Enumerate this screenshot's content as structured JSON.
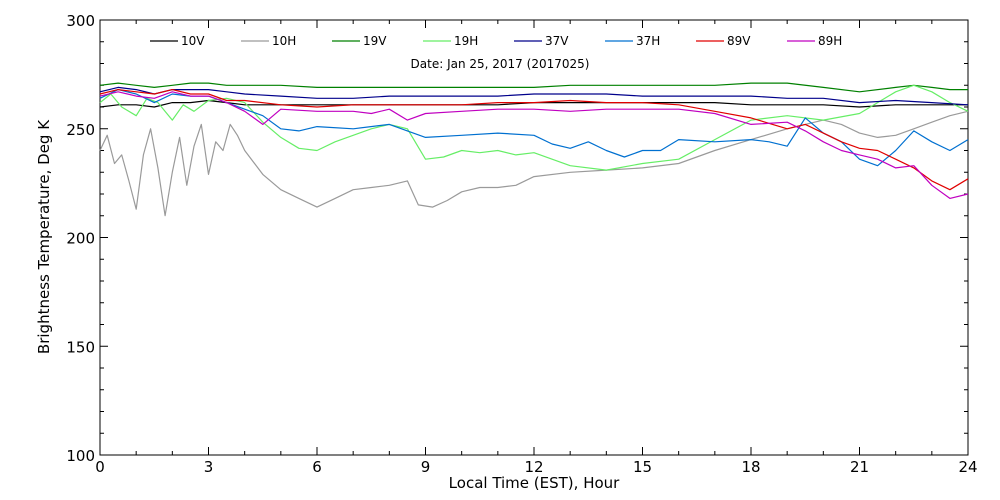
{
  "chart_data": {
    "type": "line",
    "title": "",
    "annotation": "Date: Jan 25, 2017 (2017025)",
    "xlabel": "Local Time (EST), Hour",
    "ylabel": "Brightness Temperature, Deg K",
    "xlim": [
      0,
      24
    ],
    "ylim": [
      100,
      300
    ],
    "xticks": [
      0,
      3,
      6,
      9,
      12,
      15,
      18,
      21,
      24
    ],
    "yticks": [
      100,
      150,
      200,
      250,
      300
    ],
    "grid": false,
    "legend_position": "top",
    "series": [
      {
        "name": "10V",
        "color": "#000000",
        "x": [
          0,
          0.5,
          1,
          1.5,
          2,
          2.5,
          3,
          3.5,
          4,
          5,
          6,
          7,
          8,
          9,
          10,
          11,
          12,
          13,
          14,
          15,
          16,
          17,
          18,
          19,
          20,
          21,
          22,
          23,
          24
        ],
        "y": [
          260,
          261,
          261,
          260,
          262,
          262,
          263,
          262,
          261,
          261,
          261,
          261,
          261,
          261,
          261,
          261,
          262,
          262,
          262,
          262,
          262,
          262,
          261,
          261,
          261,
          260,
          261,
          261,
          261
        ]
      },
      {
        "name": "10H",
        "color": "#9a9a9a",
        "x": [
          0,
          0.2,
          0.4,
          0.6,
          0.8,
          1.0,
          1.2,
          1.4,
          1.6,
          1.8,
          2.0,
          2.2,
          2.4,
          2.6,
          2.8,
          3.0,
          3.2,
          3.4,
          3.6,
          3.8,
          4,
          4.5,
          5,
          5.5,
          6,
          6.5,
          7,
          7.5,
          8,
          8.5,
          8.8,
          9.2,
          9.6,
          10,
          10.5,
          11,
          11.5,
          12,
          13,
          14,
          15,
          16,
          17,
          18,
          19,
          20,
          20.5,
          21,
          21.5,
          22,
          22.5,
          23,
          23.5,
          24
        ],
        "y": [
          240,
          247,
          234,
          238,
          226,
          213,
          238,
          250,
          232,
          210,
          230,
          246,
          224,
          242,
          252,
          229,
          244,
          240,
          252,
          247,
          240,
          229,
          222,
          218,
          214,
          218,
          222,
          223,
          224,
          226,
          215,
          214,
          217,
          221,
          223,
          223,
          224,
          228,
          230,
          231,
          232,
          234,
          240,
          245,
          250,
          254,
          252,
          248,
          246,
          247,
          250,
          253,
          256,
          258
        ]
      },
      {
        "name": "19V",
        "color": "#008000",
        "x": [
          0,
          0.5,
          1,
          1.5,
          2,
          2.5,
          3,
          3.5,
          4,
          5,
          6,
          7,
          8,
          9,
          10,
          11,
          12,
          13,
          14,
          15,
          16,
          17,
          18,
          19,
          20,
          21,
          22,
          22.5,
          23,
          23.5,
          24
        ],
        "y": [
          270,
          271,
          270,
          269,
          270,
          271,
          271,
          270,
          270,
          270,
          269,
          269,
          269,
          269,
          269,
          269,
          269,
          270,
          270,
          270,
          270,
          270,
          271,
          271,
          269,
          267,
          269,
          270,
          269,
          268,
          268
        ]
      },
      {
        "name": "19H",
        "color": "#66ee66",
        "x": [
          0,
          0.3,
          0.6,
          1,
          1.3,
          1.6,
          2,
          2.3,
          2.6,
          3,
          3.5,
          4,
          4.5,
          5,
          5.5,
          6,
          6.5,
          7,
          7.5,
          8,
          8.5,
          9,
          9.5,
          10,
          10.5,
          11,
          11.5,
          12,
          12.5,
          13,
          14,
          15,
          16,
          17,
          18,
          19,
          20,
          21,
          22,
          22.5,
          23,
          23.5,
          24
        ],
        "y": [
          262,
          266,
          260,
          256,
          264,
          262,
          254,
          261,
          258,
          263,
          264,
          262,
          253,
          246,
          241,
          240,
          244,
          247,
          250,
          252,
          250,
          236,
          237,
          240,
          239,
          240,
          238,
          239,
          236,
          233,
          231,
          234,
          236,
          245,
          254,
          256,
          254,
          257,
          267,
          270,
          267,
          262,
          258
        ]
      },
      {
        "name": "37V",
        "color": "#00008b",
        "x": [
          0,
          0.5,
          1,
          1.5,
          2,
          2.5,
          3,
          3.5,
          4,
          5,
          6,
          7,
          8,
          9,
          10,
          11,
          12,
          13,
          14,
          15,
          16,
          17,
          18,
          19,
          20,
          21,
          22,
          23,
          24
        ],
        "y": [
          267,
          269,
          268,
          266,
          268,
          268,
          268,
          267,
          266,
          265,
          264,
          264,
          265,
          265,
          265,
          265,
          266,
          266,
          266,
          265,
          265,
          265,
          265,
          264,
          264,
          262,
          263,
          262,
          261
        ]
      },
      {
        "name": "37H",
        "color": "#0070d0",
        "x": [
          0,
          0.5,
          1,
          1.5,
          2,
          2.5,
          3,
          3.5,
          4,
          4.5,
          5,
          5.5,
          6,
          7,
          8,
          8.5,
          9,
          10,
          11,
          12,
          12.5,
          13,
          13.5,
          14,
          14.5,
          15,
          15.5,
          16,
          17,
          18,
          18.5,
          19,
          19.5,
          20,
          20.5,
          21,
          21.5,
          22,
          22.5,
          23,
          23.5,
          24
        ],
        "y": [
          264,
          268,
          266,
          262,
          266,
          265,
          265,
          262,
          259,
          256,
          250,
          249,
          251,
          250,
          252,
          249,
          246,
          247,
          248,
          247,
          243,
          241,
          244,
          240,
          237,
          240,
          240,
          245,
          244,
          245,
          244,
          242,
          255,
          248,
          244,
          236,
          233,
          240,
          249,
          244,
          240,
          245
        ]
      },
      {
        "name": "89V",
        "color": "#e00000",
        "x": [
          0,
          0.5,
          1,
          1.5,
          2,
          2.5,
          3,
          3.5,
          4,
          5,
          6,
          7,
          8,
          9,
          10,
          11,
          12,
          13,
          14,
          15,
          16,
          17,
          18,
          19,
          19.5,
          20,
          20.5,
          21,
          21.5,
          22,
          22.5,
          23,
          23.5,
          24
        ],
        "y": [
          266,
          268,
          267,
          266,
          268,
          266,
          266,
          263,
          263,
          261,
          260,
          261,
          261,
          261,
          261,
          262,
          262,
          263,
          262,
          262,
          261,
          258,
          255,
          250,
          252,
          248,
          244,
          241,
          240,
          236,
          232,
          226,
          222,
          227
        ]
      },
      {
        "name": "89H",
        "color": "#c000c0",
        "x": [
          0,
          0.5,
          1,
          1.5,
          2,
          2.5,
          3,
          3.5,
          4,
          4.5,
          5,
          6,
          7,
          7.5,
          8,
          8.5,
          9,
          10,
          11,
          12,
          13,
          14,
          15,
          16,
          17,
          18,
          19,
          19.5,
          20,
          20.5,
          21,
          21.5,
          22,
          22.5,
          23,
          23.5,
          24
        ],
        "y": [
          265,
          267,
          265,
          264,
          267,
          265,
          265,
          262,
          258,
          252,
          259,
          258,
          258,
          257,
          259,
          254,
          257,
          258,
          259,
          259,
          258,
          259,
          259,
          259,
          257,
          252,
          253,
          249,
          244,
          240,
          238,
          236,
          232,
          233,
          224,
          218,
          220
        ]
      }
    ]
  }
}
